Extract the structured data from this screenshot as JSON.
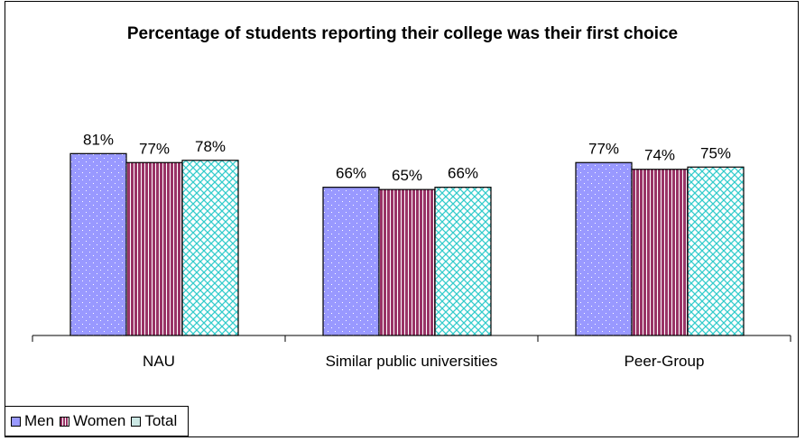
{
  "chart_data": {
    "type": "bar",
    "title": "Percentage of students reporting their college was their first choice",
    "categories": [
      "NAU",
      "Similar public universities",
      "Peer-Group"
    ],
    "series": [
      {
        "name": "Men",
        "values": [
          81,
          66,
          77
        ],
        "labels": [
          "81%",
          "66%",
          "77%"
        ]
      },
      {
        "name": "Women",
        "values": [
          77,
          65,
          74
        ],
        "labels": [
          "77%",
          "65%",
          "74%"
        ]
      },
      {
        "name": "Total",
        "values": [
          78,
          66,
          75
        ],
        "labels": [
          "78%",
          "66%",
          "75%"
        ]
      }
    ],
    "ylim": [
      0,
      100
    ],
    "grid": false,
    "legend_position": "bottom-left",
    "colors": {
      "Men": "#9999ff",
      "Women": "#993366",
      "Total": "#33cccc"
    }
  }
}
